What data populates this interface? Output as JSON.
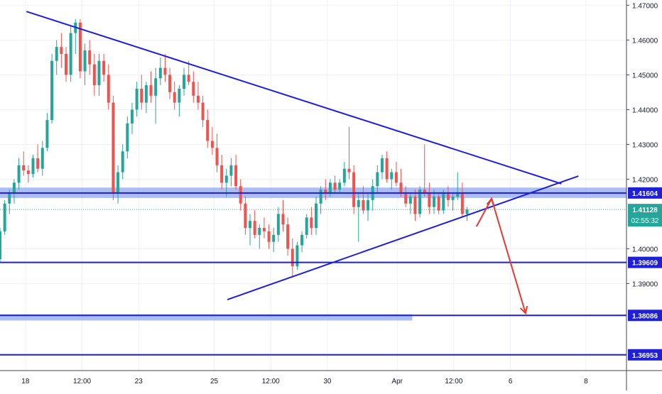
{
  "chart_data": {
    "type": "candlestick",
    "instrument_hint": "",
    "y_axis": {
      "ticks": [
        "1.47000",
        "1.46000",
        "1.45000",
        "1.44000",
        "1.43000",
        "1.42000",
        "1.40000",
        "1.39000"
      ],
      "ylim": [
        1.365,
        1.4715
      ]
    },
    "x_axis": {
      "ticks": [
        {
          "label": "18",
          "t": 0
        },
        {
          "label": "12:00",
          "t": 3
        },
        {
          "label": "23",
          "t": 6
        },
        {
          "label": "25",
          "t": 10
        },
        {
          "label": "12:00",
          "t": 13
        },
        {
          "label": "30",
          "t": 16
        },
        {
          "label": "Apr",
          "t": 19.7
        },
        {
          "label": "12:00",
          "t": 22.7
        },
        {
          "label": "6",
          "t": 25.7
        },
        {
          "label": "8",
          "t": 29.7
        }
      ],
      "xlim": [
        -1.35,
        31.85
      ]
    },
    "current_price": {
      "value": "1.41128",
      "countdown": "02:55:32",
      "price": 1.41128
    },
    "level_labels": [
      {
        "text": "1.41604",
        "price": 1.41604
      },
      {
        "text": "1.39609",
        "price": 1.39609
      },
      {
        "text": "1.38086",
        "price": 1.38086
      },
      {
        "text": "1.36953",
        "price": 1.36953
      }
    ],
    "horizontal_levels": [
      {
        "price": 1.41604,
        "band": [
          1.4146,
          1.4176
        ],
        "band_start_t": -1.35
      },
      {
        "price": 1.39609
      },
      {
        "price": 1.38086,
        "band": [
          1.3794,
          1.3812
        ],
        "band_start_t": -1.35,
        "band_end_t": 20.5
      },
      {
        "price": 1.36953
      }
    ],
    "trendlines": [
      {
        "name": "descending-resistance",
        "points": [
          [
            0.05,
            1.4682
          ],
          [
            28.4,
            1.4187
          ]
        ]
      },
      {
        "name": "ascending-support",
        "points": [
          [
            10.7,
            1.3854
          ],
          [
            29.3,
            1.4209
          ]
        ]
      }
    ],
    "projection_arrow": {
      "color": "#e53935",
      "points": [
        [
          23.9,
          1.4064
        ],
        [
          24.7,
          1.4144
        ],
        [
          26.5,
          1.3815
        ]
      ]
    },
    "candles": [
      [
        -1.35,
        1.397,
        1.406,
        1.396,
        1.405
      ],
      [
        -1.1,
        1.405,
        1.414,
        1.404,
        1.413
      ],
      [
        -0.85,
        1.413,
        1.417,
        1.41,
        1.416
      ],
      [
        -0.6,
        1.416,
        1.42,
        1.413,
        1.419
      ],
      [
        -0.35,
        1.419,
        1.426,
        1.417,
        1.424
      ],
      [
        -0.1,
        1.424,
        1.428,
        1.421,
        1.4225
      ],
      [
        0.15,
        1.4225,
        1.424,
        1.419,
        1.4215
      ],
      [
        0.4,
        1.4215,
        1.427,
        1.4205,
        1.426
      ],
      [
        0.65,
        1.426,
        1.43,
        1.422,
        1.423
      ],
      [
        0.9,
        1.423,
        1.431,
        1.421,
        1.429
      ],
      [
        1.15,
        1.429,
        1.439,
        1.428,
        1.437
      ],
      [
        1.4,
        1.437,
        1.456,
        1.436,
        1.454
      ],
      [
        1.65,
        1.454,
        1.46,
        1.45,
        1.458
      ],
      [
        1.9,
        1.458,
        1.462,
        1.452,
        1.456
      ],
      [
        2.15,
        1.456,
        1.458,
        1.448,
        1.45
      ],
      [
        2.4,
        1.45,
        1.464,
        1.448,
        1.462
      ],
      [
        2.65,
        1.462,
        1.466,
        1.456,
        1.465
      ],
      [
        2.9,
        1.465,
        1.466,
        1.449,
        1.451
      ],
      [
        3.15,
        1.451,
        1.459,
        1.447,
        1.457
      ],
      [
        3.4,
        1.457,
        1.46,
        1.45,
        1.453
      ],
      [
        3.65,
        1.453,
        1.456,
        1.444,
        1.447
      ],
      [
        3.9,
        1.447,
        1.456,
        1.444,
        1.454
      ],
      [
        4.15,
        1.454,
        1.456,
        1.448,
        1.45
      ],
      [
        4.4,
        1.45,
        1.453,
        1.44,
        1.442
      ],
      [
        4.65,
        1.442,
        1.444,
        1.414,
        1.416
      ],
      [
        4.9,
        1.416,
        1.424,
        1.413,
        1.422
      ],
      [
        5.15,
        1.422,
        1.43,
        1.42,
        1.428
      ],
      [
        5.4,
        1.428,
        1.438,
        1.426,
        1.436
      ],
      [
        5.65,
        1.436,
        1.442,
        1.433,
        1.44
      ],
      [
        5.9,
        1.44,
        1.448,
        1.438,
        1.446
      ],
      [
        6.15,
        1.446,
        1.45,
        1.44,
        1.442
      ],
      [
        6.4,
        1.442,
        1.448,
        1.439,
        1.447
      ],
      [
        6.65,
        1.447,
        1.451,
        1.442,
        1.444
      ],
      [
        6.9,
        1.444,
        1.452,
        1.436,
        1.449
      ],
      [
        7.15,
        1.449,
        1.455,
        1.447,
        1.452
      ],
      [
        7.4,
        1.452,
        1.456,
        1.448,
        1.45
      ],
      [
        7.65,
        1.45,
        1.452,
        1.443,
        1.445
      ],
      [
        7.9,
        1.445,
        1.448,
        1.44,
        1.442
      ],
      [
        8.15,
        1.442,
        1.447,
        1.438,
        1.446
      ],
      [
        8.4,
        1.446,
        1.452,
        1.444,
        1.45
      ],
      [
        8.65,
        1.45,
        1.454,
        1.447,
        1.448
      ],
      [
        8.9,
        1.448,
        1.451,
        1.442,
        1.444
      ],
      [
        9.15,
        1.444,
        1.448,
        1.44,
        1.442
      ],
      [
        9.4,
        1.442,
        1.444,
        1.435,
        1.437
      ],
      [
        9.65,
        1.437,
        1.44,
        1.429,
        1.431
      ],
      [
        9.9,
        1.431,
        1.435,
        1.427,
        1.429
      ],
      [
        10.15,
        1.429,
        1.433,
        1.422,
        1.424
      ],
      [
        10.4,
        1.424,
        1.427,
        1.417,
        1.419
      ],
      [
        10.65,
        1.419,
        1.423,
        1.415,
        1.421
      ],
      [
        10.9,
        1.421,
        1.426,
        1.418,
        1.424
      ],
      [
        11.15,
        1.424,
        1.427,
        1.417,
        1.418
      ],
      [
        11.4,
        1.418,
        1.42,
        1.411,
        1.413
      ],
      [
        11.65,
        1.413,
        1.415,
        1.404,
        1.406
      ],
      [
        11.9,
        1.406,
        1.41,
        1.401,
        1.408
      ],
      [
        12.15,
        1.408,
        1.411,
        1.403,
        1.404
      ],
      [
        12.4,
        1.404,
        1.407,
        1.4,
        1.406
      ],
      [
        12.65,
        1.406,
        1.409,
        1.403,
        1.405
      ],
      [
        12.9,
        1.405,
        1.407,
        1.4,
        1.402
      ],
      [
        13.15,
        1.402,
        1.406,
        1.399,
        1.404
      ],
      [
        13.4,
        1.404,
        1.412,
        1.402,
        1.41
      ],
      [
        13.65,
        1.41,
        1.414,
        1.405,
        1.407
      ],
      [
        13.9,
        1.407,
        1.409,
        1.398,
        1.4
      ],
      [
        14.15,
        1.4,
        1.403,
        1.392,
        1.395
      ],
      [
        14.4,
        1.395,
        1.402,
        1.394,
        1.401
      ],
      [
        14.65,
        1.401,
        1.405,
        1.399,
        1.404
      ],
      [
        14.9,
        1.404,
        1.41,
        1.403,
        1.409
      ],
      [
        15.15,
        1.409,
        1.412,
        1.404,
        1.406
      ],
      [
        15.4,
        1.406,
        1.415,
        1.404,
        1.413
      ],
      [
        15.65,
        1.413,
        1.418,
        1.41,
        1.417
      ],
      [
        15.9,
        1.417,
        1.42,
        1.414,
        1.416
      ],
      [
        16.15,
        1.416,
        1.42,
        1.415,
        1.419
      ],
      [
        16.4,
        1.419,
        1.421,
        1.416,
        1.417
      ],
      [
        16.65,
        1.417,
        1.42,
        1.416,
        1.419
      ],
      [
        16.9,
        1.419,
        1.425,
        1.418,
        1.423
      ],
      [
        17.15,
        1.423,
        1.435,
        1.42,
        1.422
      ],
      [
        17.4,
        1.422,
        1.424,
        1.41,
        1.412
      ],
      [
        17.65,
        1.412,
        1.416,
        1.402,
        1.414
      ],
      [
        17.9,
        1.414,
        1.418,
        1.41,
        1.411
      ],
      [
        18.15,
        1.411,
        1.416,
        1.408,
        1.414
      ],
      [
        18.4,
        1.414,
        1.42,
        1.411,
        1.418
      ],
      [
        18.65,
        1.418,
        1.424,
        1.416,
        1.422
      ],
      [
        18.9,
        1.422,
        1.427,
        1.42,
        1.426
      ],
      [
        19.15,
        1.426,
        1.428,
        1.419,
        1.42
      ],
      [
        19.4,
        1.42,
        1.423,
        1.417,
        1.422
      ],
      [
        19.65,
        1.422,
        1.425,
        1.418,
        1.419
      ],
      [
        19.9,
        1.419,
        1.423,
        1.415,
        1.416
      ],
      [
        20.15,
        1.416,
        1.418,
        1.412,
        1.413
      ],
      [
        20.4,
        1.413,
        1.416,
        1.41,
        1.415
      ],
      [
        20.65,
        1.415,
        1.417,
        1.408,
        1.41
      ],
      [
        20.9,
        1.41,
        1.418,
        1.409,
        1.417
      ],
      [
        21.15,
        1.417,
        1.43,
        1.415,
        1.416
      ],
      [
        21.4,
        1.416,
        1.419,
        1.41,
        1.412
      ],
      [
        21.65,
        1.412,
        1.417,
        1.41,
        1.415
      ],
      [
        21.9,
        1.415,
        1.416,
        1.41,
        1.411
      ],
      [
        22.15,
        1.411,
        1.417,
        1.41,
        1.416
      ],
      [
        22.4,
        1.416,
        1.418,
        1.412,
        1.414
      ],
      [
        22.65,
        1.414,
        1.416,
        1.411,
        1.415
      ],
      [
        22.9,
        1.415,
        1.422,
        1.414,
        1.416
      ],
      [
        23.15,
        1.416,
        1.419,
        1.409,
        1.41
      ],
      [
        23.4,
        1.41,
        1.412,
        1.408,
        1.4113
      ]
    ]
  }
}
